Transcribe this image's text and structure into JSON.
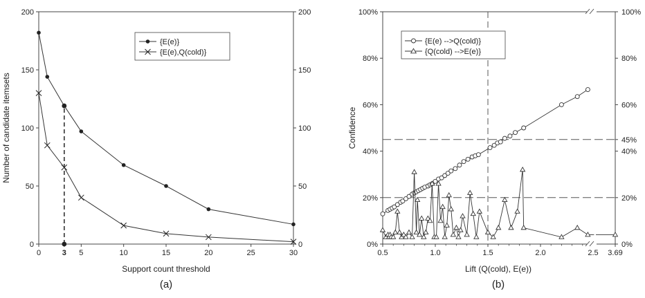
{
  "chart_data": [
    {
      "id": "a",
      "type": "line",
      "caption": "(a)",
      "xlabel": "Support count threshold",
      "ylabel": "Number of candidate itemsets",
      "xlim": [
        0,
        30
      ],
      "ylim": [
        0,
        200
      ],
      "xticks": [
        0,
        3,
        5,
        10,
        15,
        20,
        25,
        30
      ],
      "xtick_labels": [
        "0",
        "3",
        "5",
        "10",
        "15",
        "20",
        "25",
        "30"
      ],
      "yticks": [
        0,
        50,
        100,
        150,
        200
      ],
      "ytick_labels": [
        "0",
        "50",
        "100",
        "150",
        "200"
      ],
      "right_yticks": [
        0,
        50,
        100,
        150,
        200
      ],
      "right_ytick_labels": [
        "0",
        "50",
        "100",
        "150",
        "200"
      ],
      "grid": false,
      "legend_position": "top-right",
      "series": [
        {
          "name": "{E(e)}",
          "marker": "filled-circle",
          "x": [
            0,
            1,
            3,
            5,
            10,
            15,
            20,
            30
          ],
          "y": [
            182,
            144,
            119,
            97,
            68,
            50,
            30,
            17
          ]
        },
        {
          "name": "{E(e),Q(cold)}",
          "marker": "x",
          "x": [
            0,
            1,
            3,
            5,
            10,
            15,
            20,
            30
          ],
          "y": [
            130,
            85,
            66,
            40,
            16,
            9,
            6,
            2
          ]
        }
      ],
      "annotations": [
        {
          "type": "vertical-dashed-line",
          "x": 3,
          "y_from": 0,
          "y_to": 119
        },
        {
          "type": "marker",
          "x": 3,
          "y": 0
        },
        {
          "type": "marker",
          "x": 3,
          "y": 119
        }
      ]
    },
    {
      "id": "b",
      "type": "line",
      "caption": "(b)",
      "xlabel": "Lift (Q(cold), E(e))",
      "ylabel": "Confidence",
      "xlim": [
        0.5,
        3.69
      ],
      "ylim": [
        0,
        100
      ],
      "xticks": [
        0.5,
        1.0,
        1.5,
        2.0,
        2.5,
        3.69
      ],
      "xtick_labels": [
        "0.5",
        "1.0",
        "1.5",
        "2.0",
        "2.5",
        "3.69"
      ],
      "yticks": [
        0,
        20,
        40,
        60,
        80,
        100
      ],
      "ytick_labels": [
        "0%",
        "20%",
        "40%",
        "60%",
        "80%",
        "100%"
      ],
      "right_yticks": [
        0,
        20,
        40,
        45,
        60,
        80,
        100
      ],
      "right_ytick_labels": [
        "0%",
        "20%",
        "40%",
        "45%",
        "60%",
        "80%",
        "100%"
      ],
      "axis_break": "between 2.5 and 3.69",
      "grid": false,
      "legend_position": "top-left",
      "reference_lines": [
        {
          "orientation": "vertical",
          "value": 1.5,
          "style": "dashed"
        },
        {
          "orientation": "horizontal",
          "value": 45,
          "style": "dashed"
        },
        {
          "orientation": "horizontal",
          "value": 20,
          "style": "dashed"
        }
      ],
      "series": [
        {
          "name": "{E(e) -->Q(cold)}",
          "marker": "open-circle",
          "x": [
            0.5,
            0.55,
            0.57,
            0.59,
            0.61,
            0.64,
            0.67,
            0.69,
            0.72,
            0.75,
            0.78,
            0.8,
            0.82,
            0.84,
            0.86,
            0.88,
            0.9,
            0.93,
            0.95,
            0.97,
            1.0,
            1.03,
            1.06,
            1.09,
            1.12,
            1.15,
            1.19,
            1.23,
            1.27,
            1.31,
            1.35,
            1.38,
            1.41,
            1.52,
            1.56,
            1.59,
            1.62,
            1.66,
            1.71,
            1.76,
            1.84,
            2.2,
            2.35,
            2.45
          ],
          "y": [
            13,
            14.5,
            15,
            15.5,
            16,
            17,
            18,
            18.5,
            19.5,
            20.5,
            21.5,
            22,
            22.5,
            23,
            23.5,
            24,
            24.5,
            25,
            25.5,
            26,
            27,
            28,
            28.5,
            29.5,
            30.5,
            31.5,
            32.5,
            34,
            35.5,
            36.5,
            37.5,
            38,
            38.5,
            41.5,
            42.5,
            43.5,
            44,
            45.5,
            46.5,
            48,
            50,
            60,
            63.5,
            66.5
          ]
        },
        {
          "name": "{Q(cold) -->E(e)}",
          "marker": "open-triangle",
          "x": [
            0.5,
            0.53,
            0.55,
            0.56,
            0.57,
            0.58,
            0.6,
            0.62,
            0.64,
            0.66,
            0.68,
            0.7,
            0.72,
            0.75,
            0.78,
            0.8,
            0.82,
            0.83,
            0.85,
            0.87,
            0.89,
            0.91,
            0.93,
            0.95,
            0.97,
            0.99,
            1.01,
            1.03,
            1.05,
            1.07,
            1.09,
            1.11,
            1.13,
            1.15,
            1.17,
            1.2,
            1.22,
            1.24,
            1.26,
            1.3,
            1.33,
            1.36,
            1.39,
            1.42,
            1.5,
            1.55,
            1.6,
            1.66,
            1.72,
            1.78,
            1.83,
            1.84,
            2.2,
            2.35,
            2.45,
            3.69
          ],
          "y": [
            6,
            3,
            4,
            3,
            4,
            3,
            3,
            5,
            14,
            5,
            3,
            4,
            3,
            5,
            3,
            31,
            5,
            19,
            4,
            11,
            3,
            5,
            11,
            10,
            26,
            3,
            3,
            26,
            10,
            16,
            3,
            8,
            21,
            15,
            4,
            7,
            3,
            6,
            12,
            4,
            22,
            13,
            3,
            14,
            5,
            3,
            7,
            19,
            7,
            14,
            32,
            7,
            3,
            7,
            4,
            4
          ]
        }
      ]
    }
  ]
}
